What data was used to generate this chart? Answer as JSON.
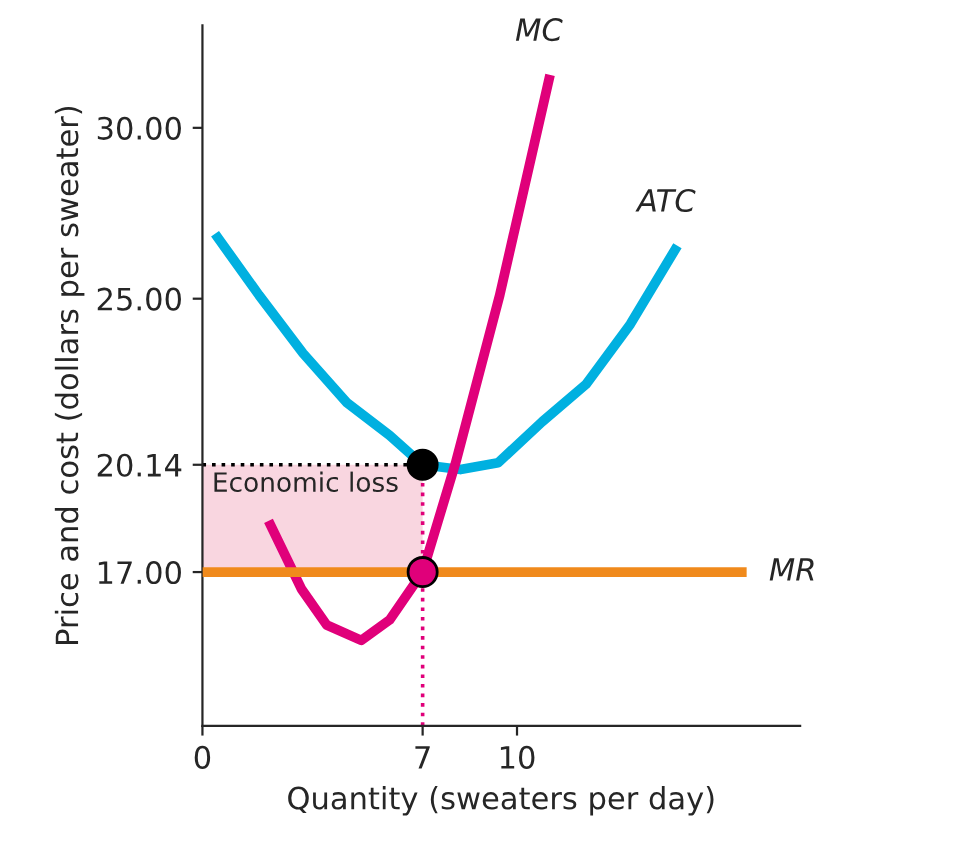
{
  "chart_data": {
    "type": "line",
    "xlabel": "Quantity (sweaters per day)",
    "ylabel": "Price and cost (dollars per sweater)",
    "xlim": [
      0,
      19
    ],
    "ylim": [
      12.5,
      33
    ],
    "xticks": [
      0,
      7,
      10
    ],
    "yticks": [
      {
        "value": 17,
        "label": "17.00"
      },
      {
        "value": 20.14,
        "label": "20.14"
      },
      {
        "value": 25,
        "label": "25.00"
      },
      {
        "value": 30,
        "label": "30.00"
      }
    ],
    "grid": false,
    "line_style": "solid",
    "series": [
      {
        "name": "ATC",
        "color": "#00b0e0",
        "x": [
          0.4,
          1.8,
          3.2,
          4.6,
          5.95,
          7,
          8.2,
          9.4,
          10.8,
          12.2,
          13.6,
          15.1
        ],
        "values": [
          26.9,
          25.1,
          23.4,
          21.95,
          21.0,
          20.14,
          20.0,
          20.2,
          21.4,
          22.5,
          24.25,
          26.55
        ]
      },
      {
        "name": "MC",
        "color": "#e0007a",
        "x": [
          2.1,
          3.15,
          3.95,
          5.05,
          5.95,
          7,
          8.05,
          9.45,
          11.05
        ],
        "values": [
          18.5,
          16.5,
          15.45,
          15.0,
          15.6,
          17.0,
          20.2,
          25.1,
          31.55
        ]
      },
      {
        "name": "MR",
        "color": "#f08a1c",
        "x": [
          0,
          17.3
        ],
        "values": [
          17,
          17
        ]
      },
      {
        "type": "scatter",
        "x": [
          7,
          7
        ],
        "values": [
          20.14,
          17
        ],
        "colors": [
          "#000000",
          "#e0007a"
        ]
      }
    ],
    "ref_lines": [
      {
        "axis": "x",
        "value": 7,
        "line_style": "dotted",
        "color": "#e0007a"
      },
      {
        "axis": "y",
        "value": 20.14,
        "line_style": "dotted",
        "color": "#000000"
      }
    ],
    "bands": [
      {
        "axis": "y",
        "from": 17,
        "to": 20.14,
        "label": "Economic loss",
        "color": "#f9d6e0"
      }
    ]
  }
}
